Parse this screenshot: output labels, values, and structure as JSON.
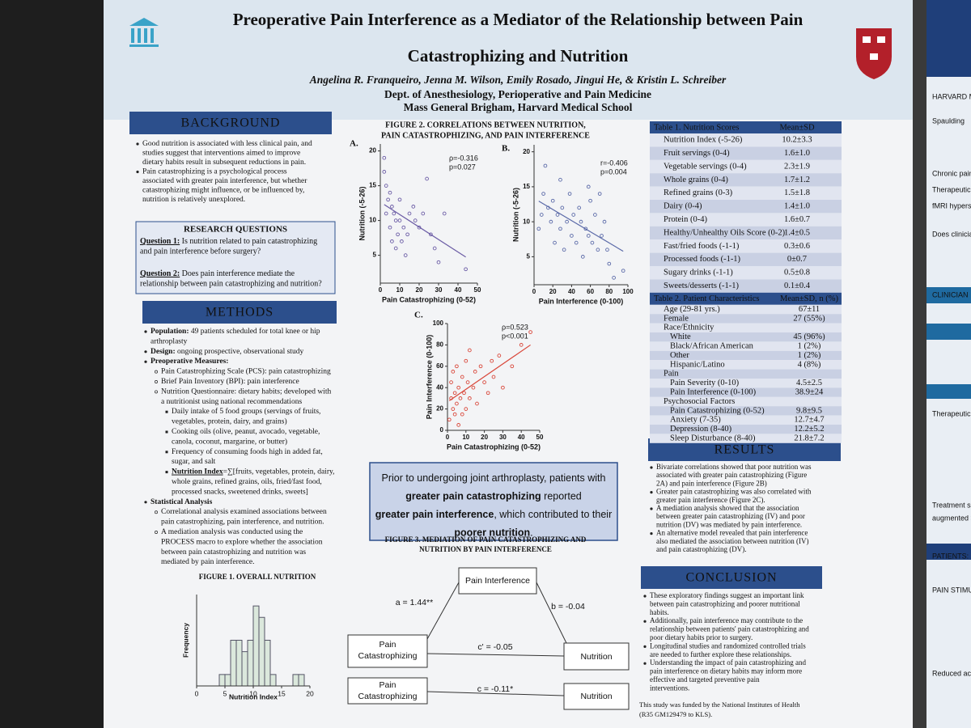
{
  "header": {
    "title": [
      "Preoperative Pain Interference as a Mediator of the Relationship between Pain",
      "Catastrophizing and Nutrition"
    ],
    "authors": "Angelina R. Franqueiro, Jenna M. Wilson, Emily Rosado, Jingui He, & Kristin L. Schreiber",
    "department": "Dept. of Anesthesiology, Perioperative and Pain Medicine",
    "institution": "Mass General Brigham, Harvard Medical School"
  },
  "background": {
    "heading": "BACKGROUND",
    "items": [
      {
        "lines": [
          "Good nutrition is associated with less clinical pain, and",
          "studies suggest that interventions aimed to improve",
          "dietary habits result in subsequent reductions in pain."
        ]
      },
      {
        "lines": [
          "Pain catastrophizing is a psychological process",
          "associated with greater pain interference, but whether",
          "catastrophizing might influence, or be influenced by,",
          "nutrition is relatively unexplored."
        ]
      }
    ]
  },
  "research_questions": {
    "heading": "RESEARCH QUESTIONS",
    "items": [
      {
        "label": "Question 1:",
        "lines": [
          " Is nutrition related to pain catastrophizing",
          "and pain interference before surgery?"
        ]
      },
      {
        "label": "Question 2:",
        "lines": [
          " Does pain interference mediate the",
          "relationship between pain catastrophizing and nutrition?"
        ]
      }
    ]
  },
  "methods": {
    "heading": "METHODS",
    "items": [
      {
        "label": "Population:",
        "lines": [
          " 49 patients scheduled for total knee or hip",
          "arthroplasty"
        ]
      },
      {
        "label": "Design:",
        "lines": [
          " ongoing prospective, observational study"
        ]
      },
      {
        "label": "Preoperative Measures:",
        "lines": [],
        "items": [
          {
            "lines": [
              "Pain Catastrophizing Scale (PCS): pain catastrophizing"
            ]
          },
          {
            "lines": [
              "Brief Pain Inventory (BPI): pain interference"
            ]
          },
          {
            "lines": [
              "Nutrition Questionnaire: dietary habits; developed with",
              "a nutritionist using national recommendations"
            ],
            "items": [
              {
                "lines": [
                  "Daily intake of 5 food groups (servings of fruits,",
                  "vegetables, protein, dairy, and grains)"
                ]
              },
              {
                "lines": [
                  "Cooking oils (olive, peanut, avocado, vegetable,",
                  "canola, coconut, margarine, or butter)"
                ]
              },
              {
                "lines": [
                  "Frequency of consuming foods high in added fat,",
                  "sugar, and salt"
                ]
              },
              {
                "label": "Nutrition Index",
                "underline": true,
                "lines": [
                  "=∑[fruits, vegetables, protein, dairy,",
                  "whole grains, refined grains, oils, fried/fast food,",
                  "processed snacks, sweetened drinks, sweets]"
                ]
              }
            ]
          }
        ]
      },
      {
        "label": "Statistical Analysis",
        "lines": [],
        "items": [
          {
            "lines": [
              "Correlational analysis examined associations between",
              "pain catastrophizing, pain interference, and nutrition."
            ]
          },
          {
            "lines": [
              "A mediation analysis was conducted using the",
              "PROCESS macro to explore whether the association",
              "between pain catastrophizing and nutrition was",
              "mediated by pain interference."
            ]
          }
        ]
      }
    ]
  },
  "figure1": {
    "title": "FIGURE 1. OVERALL NUTRITION",
    "xlabel": "Nutrition Index",
    "ylabel": "Frequency",
    "xlim": [
      0,
      20
    ],
    "xticks": [
      0,
      5,
      10,
      15,
      20
    ],
    "ylim": [
      0,
      8
    ],
    "bins": [
      4,
      5,
      6,
      7,
      8,
      9,
      10,
      11,
      12,
      13,
      14,
      15,
      16,
      17,
      18,
      19
    ],
    "counts": [
      1,
      1,
      4,
      4,
      3,
      4,
      7,
      6,
      4,
      1,
      0,
      0,
      0,
      1,
      1
    ],
    "color": "#dbe8dc"
  },
  "figure2": {
    "title": [
      "FIGURE 2. CORRELATIONS BETWEEN NUTRITION,",
      "PAIN CATASTROPHIZING, AND PAIN INTERFERENCE"
    ],
    "panels": [
      {
        "label": "A.",
        "xlabel": "Pain Catastrophizing (0-52)",
        "ylabel": "Nutrition (-5-26)",
        "stats": [
          "ρ=-0.316",
          "p=0.027"
        ],
        "color": "#6b5ca5",
        "xlim": [
          0,
          50
        ],
        "xticks": [
          0,
          10,
          20,
          30,
          40,
          50
        ],
        "ylim": [
          1,
          21
        ],
        "yticks": [
          5,
          10,
          15,
          20
        ],
        "x": [
          2,
          3,
          5,
          4,
          6,
          7,
          3,
          8,
          10,
          12,
          5,
          9,
          14,
          6,
          11,
          15,
          18,
          20,
          22,
          24,
          26,
          28,
          33,
          13,
          8,
          30,
          44,
          17,
          10,
          2
        ],
        "y": [
          17,
          15,
          14,
          13,
          12,
          11,
          11,
          10,
          10,
          9,
          9,
          8,
          8,
          7,
          7,
          11,
          10,
          9,
          11,
          16,
          8,
          6,
          11,
          5,
          6,
          4,
          3,
          12,
          13,
          19
        ]
      },
      {
        "label": "B.",
        "xlabel": "Pain Interference (0-100)",
        "ylabel": "Nutrition (-5-26)",
        "stats": [
          "r=-0.406",
          "p=0.004"
        ],
        "color": "#5b6aa8",
        "xlim": [
          0,
          100
        ],
        "xticks": [
          0,
          20,
          40,
          60,
          80,
          100
        ],
        "ylim": [
          1,
          21
        ],
        "yticks": [
          5,
          10,
          15,
          20
        ],
        "x": [
          5,
          8,
          10,
          12,
          15,
          18,
          20,
          22,
          25,
          28,
          30,
          32,
          35,
          38,
          40,
          42,
          45,
          48,
          50,
          52,
          55,
          58,
          60,
          62,
          65,
          68,
          70,
          72,
          75,
          78,
          80,
          85,
          95,
          58,
          28
        ],
        "y": [
          9,
          11,
          14,
          18,
          12,
          10,
          13,
          7,
          11,
          9,
          12,
          6,
          10,
          14,
          8,
          11,
          7,
          12,
          10,
          5,
          9,
          8,
          13,
          7,
          11,
          6,
          14,
          8,
          10,
          6,
          4,
          2,
          3,
          15,
          16
        ]
      },
      {
        "label": "C.",
        "xlabel": "Pain Catastrophizing (0-52)",
        "ylabel": "Pain Interference (0-100)",
        "stats": [
          "ρ=0.523",
          "p<0.001"
        ],
        "color": "#d9473a",
        "xlim": [
          0,
          50
        ],
        "xticks": [
          0,
          10,
          20,
          30,
          40,
          50
        ],
        "ylim": [
          0,
          100
        ],
        "yticks": [
          0,
          20,
          40,
          60,
          80,
          100
        ],
        "x": [
          1,
          2,
          2,
          3,
          3,
          4,
          4,
          5,
          5,
          6,
          6,
          7,
          8,
          8,
          9,
          10,
          10,
          11,
          12,
          12,
          14,
          15,
          16,
          18,
          20,
          22,
          24,
          25,
          28,
          30,
          35,
          40,
          45
        ],
        "y": [
          10,
          30,
          45,
          20,
          55,
          15,
          35,
          25,
          60,
          40,
          5,
          30,
          50,
          15,
          35,
          65,
          20,
          45,
          30,
          75,
          40,
          55,
          25,
          60,
          45,
          35,
          65,
          50,
          70,
          40,
          60,
          80,
          92
        ]
      }
    ]
  },
  "key_finding": {
    "lines": [
      [
        {
          "text": "Prior to undergoing joint arthroplasty, patients with",
          "bold": false
        }
      ],
      [
        {
          "text": "greater pain catastrophizing",
          "bold": true
        },
        {
          "text": " reported",
          "bold": false
        }
      ],
      [
        {
          "text": "greater pain interference",
          "bold": true
        },
        {
          "text": ", which contributed to their",
          "bold": false
        }
      ],
      [
        {
          "text": "poorer nutrition",
          "bold": true
        },
        {
          "text": ".",
          "bold": false
        }
      ]
    ]
  },
  "figure3": {
    "title": [
      "FIGURE 3. MEDIATION OF PAIN CATASTROPHIZING AND",
      "NUTRITION BY PAIN INTERFERENCE"
    ],
    "mediator": "Pain Interference",
    "predictor": [
      "Pain",
      "Catastrophizing"
    ],
    "outcome": "Nutrition",
    "path_a": "a = 1.44**",
    "path_b": "b = -0.04",
    "path_c_prime": "c' = -0.05",
    "path_c": "c = -0.11*"
  },
  "table1": {
    "header": [
      "Table 1. Nutrition Scores",
      "Mean±SD"
    ],
    "rows": [
      {
        "label": "Nutrition Index (-5-26)",
        "value": "10.2±3.3"
      },
      {
        "label": "Fruit servings (0-4)",
        "value": "1.6±1.0"
      },
      {
        "label": "Vegetable servings (0-4)",
        "value": "2.3±1.9"
      },
      {
        "label": "Whole grains (0-4)",
        "value": "1.7±1.2"
      },
      {
        "label": "Refined grains (0-3)",
        "value": "1.5±1.8"
      },
      {
        "label": "Dairy (0-4)",
        "value": "1.4±1.0"
      },
      {
        "label": "Protein (0-4)",
        "value": "1.6±0.7"
      },
      {
        "label": "Healthy/Unhealthy Oils Score (0-2)",
        "value": "1.4±0.5"
      },
      {
        "label": "Fast/fried foods (-1-1)",
        "value": "0.3±0.6"
      },
      {
        "label": "Processed foods (-1-1)",
        "value": "0±0.7"
      },
      {
        "label": "Sugary drinks (-1-1)",
        "value": "0.5±0.8"
      },
      {
        "label": "Sweets/desserts (-1-1)",
        "value": "0.1±0.4"
      }
    ]
  },
  "table2": {
    "header": [
      "Table 2. Patient Characteristics",
      "Mean±SD, n (%)"
    ],
    "rows": [
      {
        "label": "Age (29-81 yrs.)",
        "value": "67±11"
      },
      {
        "label": "Female",
        "value": "27 (55%)"
      },
      {
        "label": "Race/Ethnicity",
        "rows": [
          {
            "label": "White",
            "value": "45 (96%)"
          },
          {
            "label": "Black/African American",
            "value": "1 (2%)"
          },
          {
            "label": "Other",
            "value": "1 (2%)"
          },
          {
            "label": "Hispanic/Latino",
            "value": "4 (8%)"
          }
        ]
      },
      {
        "label": "Pain",
        "rows": [
          {
            "label": "Pain Severity (0-10)",
            "value": "4.5±2.5"
          },
          {
            "label": "Pain Interference (0-100)",
            "value": "38.9±24"
          }
        ]
      },
      {
        "label": "Psychosocial Factors",
        "rows": [
          {
            "label": "Pain Catastrophizing (0-52)",
            "value": "9.8±9.5"
          },
          {
            "label": "Anxiety (7-35)",
            "value": "12.7±4.7"
          },
          {
            "label": "Depression (8-40)",
            "value": "12.2±5.2"
          },
          {
            "label": "Sleep Disturbance (8-40)",
            "value": "21.8±7.2"
          }
        ]
      }
    ]
  },
  "results": {
    "heading": "RESULTS",
    "items": [
      {
        "lines": [
          "Bivariate correlations showed that poor nutrition was",
          "associated with greater pain catastrophizing (Figure",
          "2A) and pain interference (Figure 2B)"
        ]
      },
      {
        "lines": [
          "Greater pain catastrophizing was also correlated with",
          "greater pain interference (Figure 2C)."
        ]
      },
      {
        "lines": [
          "A mediation analysis showed that the association",
          "between greater pain catastrophizing (IV) and poor",
          "nutrition (DV) was mediated by pain interference."
        ]
      },
      {
        "lines": [
          "An alternative model revealed that pain interference",
          "also mediated the association between nutrition (IV)",
          "and pain catastrophizing (DV)."
        ]
      }
    ]
  },
  "conclusion": {
    "heading": "CONCLUSION",
    "items": [
      {
        "lines": [
          "These exploratory findings suggest an important link",
          "between pain catastrophizing and poorer nutritional",
          "habits."
        ]
      },
      {
        "lines": [
          "Additionally, pain interference may contribute to the",
          "relationship between patients' pain catastrophizing and",
          "poor dietary habits prior to surgery."
        ]
      },
      {
        "lines": [
          "Longitudinal studies and randomized controlled trials",
          "are needed to further explore these relationships."
        ]
      },
      {
        "lines": [
          "Understanding the impact of pain catastrophizing and",
          "pain interference on dietary habits may inform more",
          "effective and targeted preventive pain",
          "interventions."
        ]
      }
    ]
  },
  "funding": [
    "This study was funded by the National Institutes of Health",
    "(R35 GM129479 to KLS)."
  ],
  "side_poster": {
    "texts": [
      "HARVARD MED",
      "Spaulding",
      "Chronic pain + pa",
      "Therapeutic allian",
      "fMRI hyperscanning",
      "Does clinician inte",
      "CLINICIAN",
      "Therapeutic alliance",
      "Treatment session",
      "augmented > limited",
      "PATIENTS: Δ Cuff Pain fMI",
      "PAIN STIMULATION",
      "Reduced activation in nociception pr"
    ]
  }
}
